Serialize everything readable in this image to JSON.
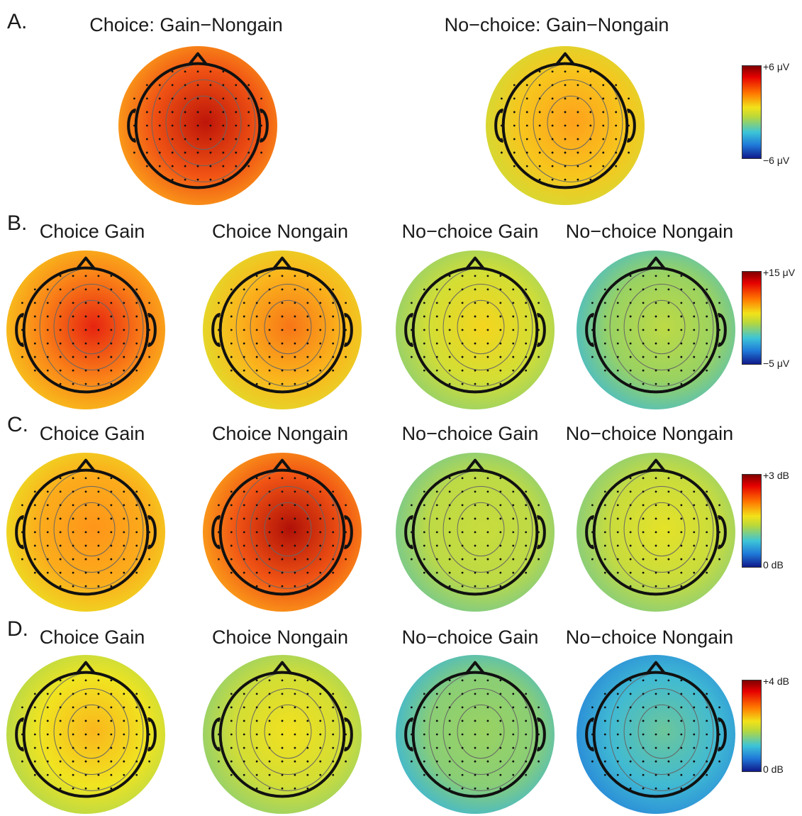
{
  "colormap": {
    "stops": [
      "#0a1a88",
      "#1f6fd6",
      "#35b7e0",
      "#9fd45a",
      "#f1e41f",
      "#ff9a1a",
      "#e82510",
      "#880000"
    ]
  },
  "panels": [
    {
      "letter": "A.",
      "colorbar": {
        "max_label": "+6 μV",
        "min_label": "−6 μV"
      },
      "maps": [
        {
          "title": "Choice: Gain−Nongain",
          "value": 0.8,
          "hotspot": 0.92
        },
        {
          "title": "No−choice: Gain−Nongain",
          "value": 0.63,
          "hotspot": 0.7
        }
      ]
    },
    {
      "letter": "B.",
      "colorbar": {
        "max_label": "+15 μV",
        "min_label": "−5 μV"
      },
      "maps": [
        {
          "title": "Choice Gain",
          "value": 0.74,
          "hotspot": 0.86
        },
        {
          "title": "Choice Nongain",
          "value": 0.66,
          "hotspot": 0.76
        },
        {
          "title": "No−choice Gain",
          "value": 0.52,
          "hotspot": 0.6
        },
        {
          "title": "No−choice Nongain",
          "value": 0.42,
          "hotspot": 0.48
        }
      ]
    },
    {
      "letter": "C.",
      "colorbar": {
        "max_label": "+3 dB",
        "min_label": "0 dB"
      },
      "maps": [
        {
          "title": "Choice Gain",
          "value": 0.68,
          "hotspot": 0.72
        },
        {
          "title": "Choice Nongain",
          "value": 0.8,
          "hotspot": 0.94
        },
        {
          "title": "No−choice Gain",
          "value": 0.48,
          "hotspot": 0.5
        },
        {
          "title": "No−choice Nongain",
          "value": 0.5,
          "hotspot": 0.55
        }
      ]
    },
    {
      "letter": "D.",
      "colorbar": {
        "max_label": "+4 dB",
        "min_label": "0 dB"
      },
      "maps": [
        {
          "title": "Choice Gain",
          "value": 0.57,
          "hotspot": 0.66
        },
        {
          "title": "Choice Nongain",
          "value": 0.52,
          "hotspot": 0.58
        },
        {
          "title": "No−choice Gain",
          "value": 0.4,
          "hotspot": 0.42
        },
        {
          "title": "No−choice Nongain",
          "value": 0.3,
          "hotspot": 0.36
        }
      ]
    }
  ]
}
